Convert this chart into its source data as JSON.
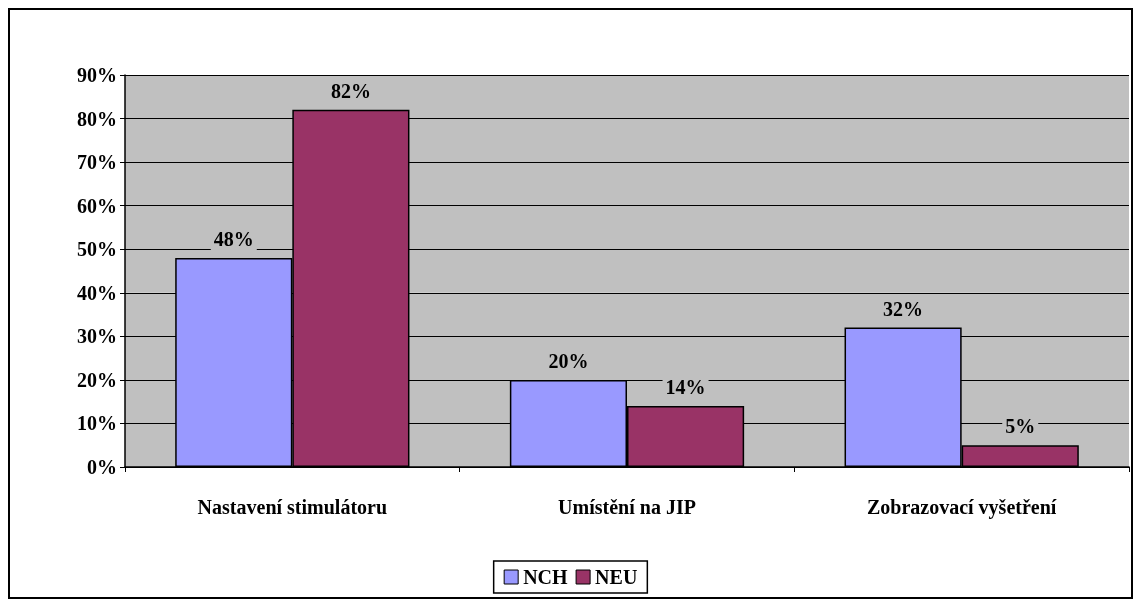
{
  "chart_data": {
    "type": "bar",
    "categories": [
      "Nastavení stimulátoru",
      "Umístění na JIP",
      "Zobrazovací vyšetření"
    ],
    "series": [
      {
        "name": "NCH",
        "color": "#9999ff",
        "values": [
          48,
          20,
          32
        ],
        "value_labels": [
          "48%",
          "20%",
          "32%"
        ]
      },
      {
        "name": "NEU",
        "color": "#993366",
        "values": [
          82,
          14,
          5
        ],
        "value_labels": [
          "82%",
          "14%",
          "5%"
        ]
      }
    ],
    "ylim": [
      0,
      90
    ],
    "yticks": [
      {
        "value": 0,
        "label": "0%"
      },
      {
        "value": 10,
        "label": "10%"
      },
      {
        "value": 20,
        "label": "20%"
      },
      {
        "value": 30,
        "label": "30%"
      },
      {
        "value": 40,
        "label": "40%"
      },
      {
        "value": 50,
        "label": "50%"
      },
      {
        "value": 60,
        "label": "60%"
      },
      {
        "value": 70,
        "label": "70%"
      },
      {
        "value": 80,
        "label": "80%"
      },
      {
        "value": 90,
        "label": "90%"
      }
    ],
    "grid": "y",
    "legend": "bottom"
  }
}
